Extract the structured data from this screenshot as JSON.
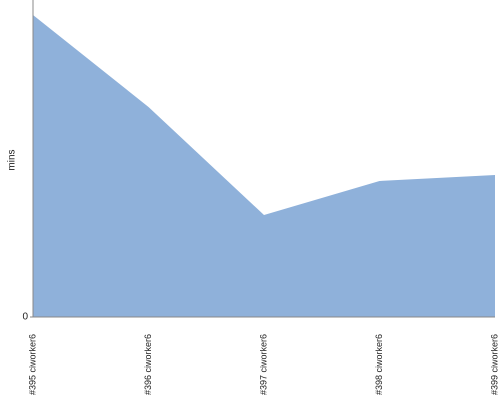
{
  "chart_data": {
    "type": "area",
    "y_label": "mins",
    "categories": [
      "#395 ciworker6",
      "#396 ciworker6",
      "#397 ciworker6",
      "#398 ciworker6",
      "#399 ciworker6"
    ],
    "values": [
      30.2,
      21,
      10.2,
      13.6,
      14.2
    ],
    "color": "#8fb1da",
    "ylim": [
      0,
      31.7
    ],
    "yticks": [
      0
    ]
  }
}
